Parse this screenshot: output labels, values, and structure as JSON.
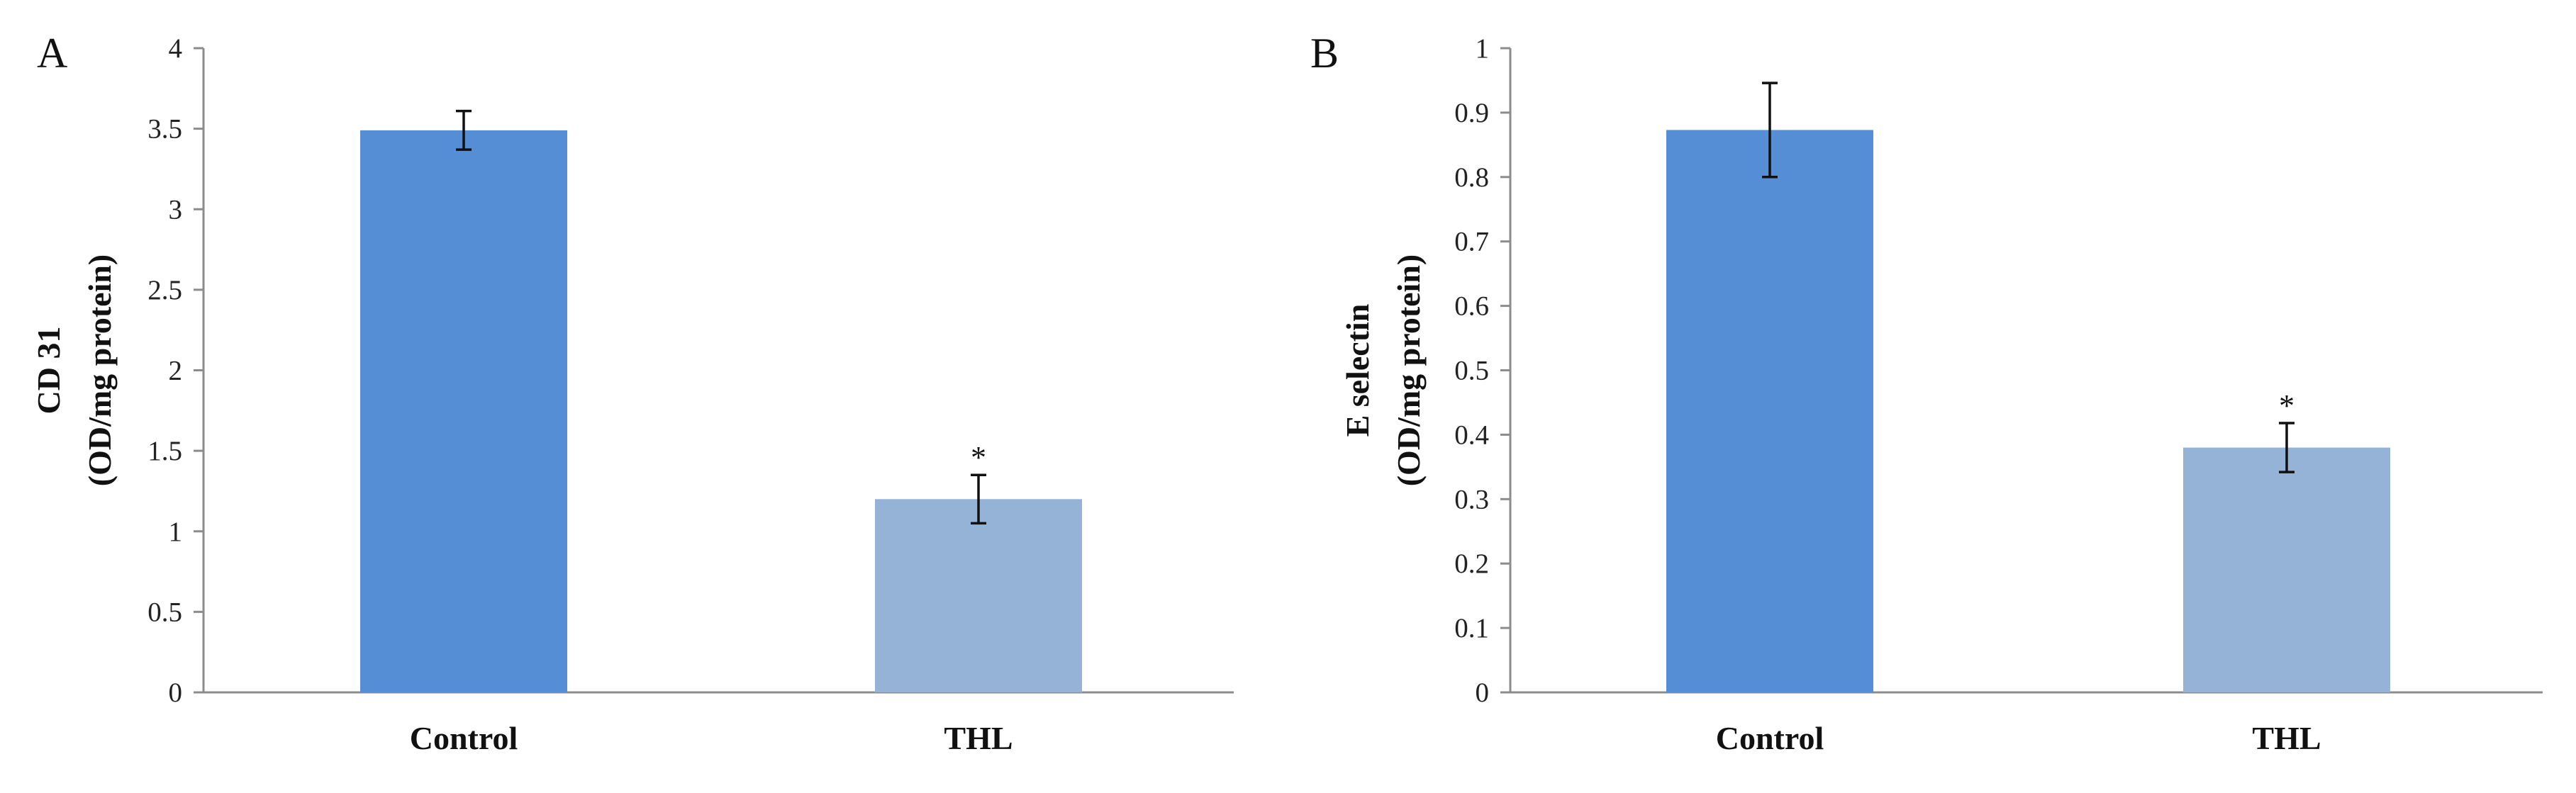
{
  "chart_data": [
    {
      "type": "bar",
      "panel_label": "A",
      "title": "",
      "xlabel": "",
      "ylabel_lines": [
        "CD 31",
        "(OD/mg protein)"
      ],
      "categories": [
        "Control",
        "THL"
      ],
      "values": [
        3.49,
        1.2
      ],
      "errors": [
        0.12,
        0.15
      ],
      "significance": [
        "",
        "*"
      ],
      "colors": [
        "#558ed5",
        "#95b3d7"
      ],
      "ylim": [
        0,
        4
      ],
      "yticks": [
        0,
        0.5,
        1,
        1.5,
        2,
        2.5,
        3,
        3.5,
        4
      ],
      "ytick_labels": [
        "0",
        "0.5",
        "1",
        "1.5",
        "2",
        "2.5",
        "3",
        "3.5",
        "4"
      ],
      "grid": false
    },
    {
      "type": "bar",
      "panel_label": "B",
      "title": "",
      "xlabel": "",
      "ylabel_lines": [
        "E selectin",
        "(OD/mg protein)"
      ],
      "categories": [
        "Control",
        "THL"
      ],
      "values": [
        0.873,
        0.38
      ],
      "errors": [
        0.073,
        0.038
      ],
      "significance": [
        "",
        "*"
      ],
      "colors": [
        "#558ed5",
        "#95b3d7"
      ],
      "ylim": [
        0,
        1
      ],
      "yticks": [
        0,
        0.1,
        0.2,
        0.3,
        0.4,
        0.5,
        0.6,
        0.7,
        0.8,
        0.9,
        1
      ],
      "ytick_labels": [
        "0",
        "0.1",
        "0.2",
        "0.3",
        "0.4",
        "0.5",
        "0.6",
        "0.7",
        "0.8",
        "0.9",
        "1"
      ],
      "grid": false
    }
  ]
}
